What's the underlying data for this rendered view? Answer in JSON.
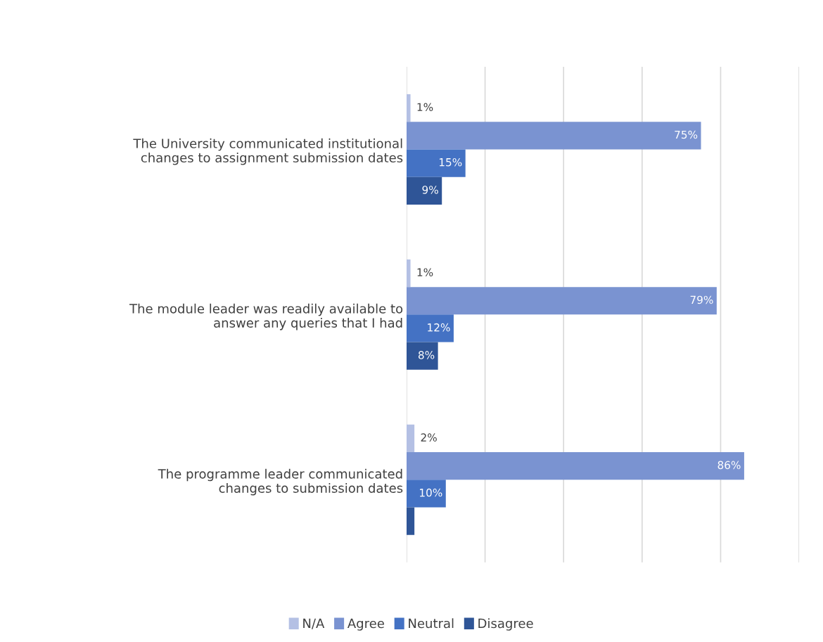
{
  "chart_data": {
    "type": "bar",
    "orientation": "horizontal",
    "categories": [
      "The University communicated institutional\nchanges to assignment submission dates",
      "The module leader was readily available to\nanswer any queries that I had",
      "The programme leader communicated\nchanges to submission dates"
    ],
    "series": [
      {
        "name": "N/A",
        "color": "#b4c0e4",
        "values": [
          1,
          1,
          2
        ],
        "value_labels": [
          "1%",
          "1%",
          "2%"
        ]
      },
      {
        "name": "Agree",
        "color": "#7a93d1",
        "values": [
          75,
          79,
          86
        ],
        "value_labels": [
          "75%",
          "79%",
          "86%"
        ]
      },
      {
        "name": "Neutral",
        "color": "#4472c4",
        "values": [
          15,
          12,
          10
        ],
        "value_labels": [
          "15%",
          "12%",
          "10%"
        ]
      },
      {
        "name": "Disagree",
        "color": "#2f5597",
        "values": [
          9,
          8,
          2
        ],
        "value_labels": [
          "9%",
          "8%",
          null
        ]
      }
    ],
    "xlim": [
      0,
      100
    ],
    "xticks": [
      {
        "value": 0,
        "label": null
      },
      {
        "value": 20,
        "label": null
      },
      {
        "value": 40,
        "label": null
      },
      {
        "value": 60,
        "label": null
      },
      {
        "value": 80,
        "label": null
      },
      {
        "value": 100,
        "label": null
      }
    ],
    "tick_labels": "y",
    "grid": "x",
    "legend": "bottom"
  }
}
